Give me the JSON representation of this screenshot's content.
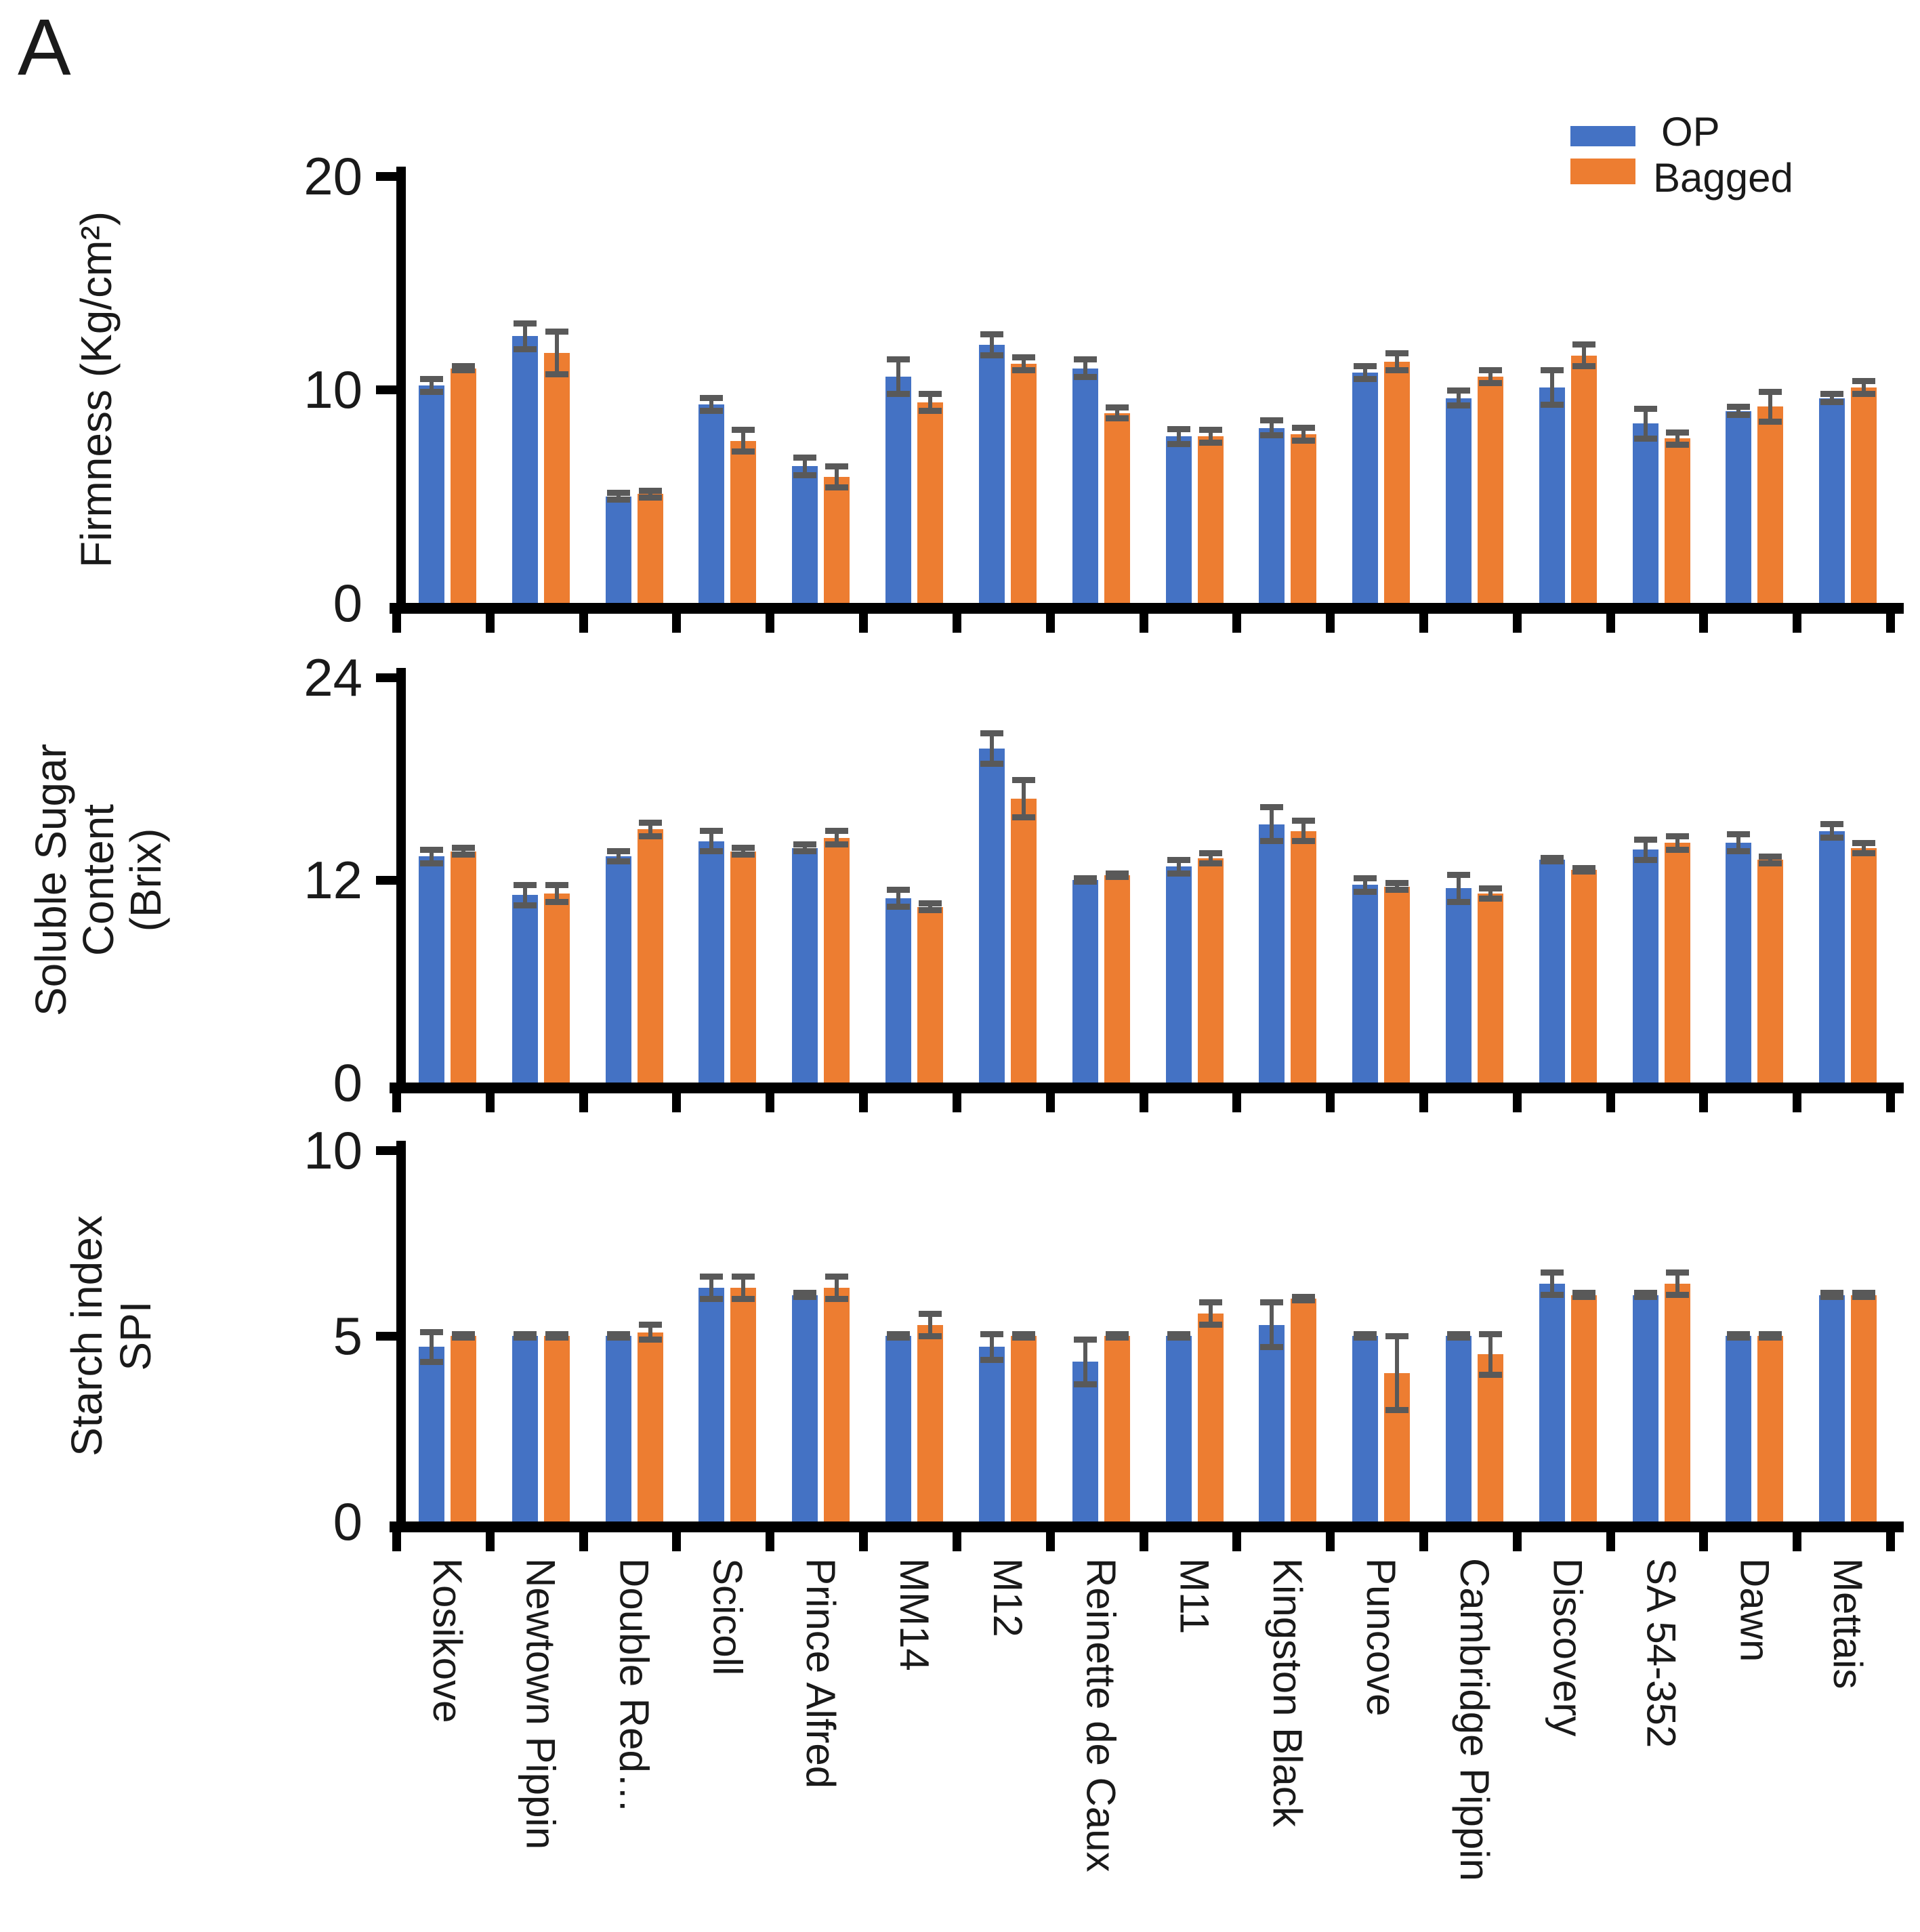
{
  "figure_label": "A",
  "legend": {
    "items": [
      {
        "label": "OP",
        "color": "#4472C4"
      },
      {
        "label": "Bagged",
        "color": "#ED7D31"
      }
    ]
  },
  "colors": {
    "op": "#4472C4",
    "bagged": "#ED7D31",
    "error_bar": "#595959",
    "axis": "#000000"
  },
  "chart_data": [
    {
      "type": "bar",
      "ylabel": "Firmness (Kg/cm²)",
      "ylabel_lines": [
        "Firmness (Kg/cm²)"
      ],
      "ylim": [
        0,
        20
      ],
      "yticks": [
        0,
        10,
        20
      ],
      "grid": false,
      "legend_position": "top-right",
      "categories": [
        "Kosikove",
        "Newtown Pippin",
        "Double Red…",
        "Scicoll",
        "Prince Alfred",
        "MM14",
        "M12",
        "Reinette de Caux",
        "M11",
        "Kingston Black",
        "Puncove",
        "Cambridge Pippin",
        "Discovery",
        "SA 54-352",
        "Dawn",
        "Mettais"
      ],
      "series": [
        {
          "name": "OP",
          "color": "#4472C4",
          "values": [
            10.2,
            12.5,
            5.0,
            9.3,
            6.4,
            10.6,
            12.1,
            11.0,
            7.8,
            8.2,
            10.8,
            9.6,
            10.1,
            8.4,
            9.0,
            9.6
          ],
          "errors": [
            0.3,
            0.6,
            0.15,
            0.3,
            0.4,
            0.8,
            0.5,
            0.4,
            0.35,
            0.35,
            0.3,
            0.35,
            0.8,
            0.7,
            0.2,
            0.2
          ]
        },
        {
          "name": "Bagged",
          "color": "#ED7D31",
          "values": [
            11.0,
            11.7,
            5.1,
            7.6,
            5.9,
            9.4,
            11.2,
            8.9,
            7.8,
            7.9,
            11.3,
            10.6,
            11.6,
            7.7,
            9.2,
            10.1
          ],
          "errors": [
            0.1,
            1.0,
            0.15,
            0.5,
            0.5,
            0.4,
            0.3,
            0.25,
            0.3,
            0.3,
            0.4,
            0.3,
            0.5,
            0.3,
            0.7,
            0.3
          ]
        }
      ]
    },
    {
      "type": "bar",
      "ylabel": "Soluble Sugar Content (Brix)",
      "ylabel_lines": [
        "Soluble Sugar",
        "Content",
        "(Brix)"
      ],
      "ylim": [
        0,
        24
      ],
      "yticks": [
        0,
        12,
        24
      ],
      "grid": false,
      "categories": [
        "Kosikove",
        "Newtown Pippin",
        "Double Red…",
        "Scicoll",
        "Prince Alfred",
        "MM14",
        "M12",
        "Reinette de Caux",
        "M11",
        "Kingston Black",
        "Puncove",
        "Cambridge Pippin",
        "Discovery",
        "SA 54-352",
        "Dawn",
        "Mettais"
      ],
      "series": [
        {
          "name": "OP",
          "color": "#4472C4",
          "values": [
            13.4,
            11.1,
            13.4,
            14.3,
            13.9,
            10.9,
            19.8,
            12.0,
            12.8,
            15.3,
            11.7,
            11.5,
            13.2,
            13.8,
            14.2,
            14.9
          ],
          "errors": [
            0.4,
            0.6,
            0.3,
            0.6,
            0.2,
            0.5,
            0.9,
            0.1,
            0.4,
            1.0,
            0.4,
            0.8,
            0.1,
            0.6,
            0.5,
            0.4
          ]
        },
        {
          "name": "Bagged",
          "color": "#ED7D31",
          "values": [
            13.7,
            11.2,
            15.0,
            13.7,
            14.5,
            10.4,
            16.8,
            12.3,
            13.3,
            14.9,
            11.6,
            11.2,
            12.6,
            14.2,
            13.2,
            13.9
          ],
          "errors": [
            0.2,
            0.5,
            0.4,
            0.2,
            0.4,
            0.2,
            1.1,
            0.1,
            0.3,
            0.6,
            0.2,
            0.3,
            0.1,
            0.4,
            0.2,
            0.3
          ]
        }
      ]
    },
    {
      "type": "bar",
      "ylabel": "Starch index SPI",
      "ylabel_lines": [
        "Starch index",
        "SPI"
      ],
      "ylim": [
        0,
        10
      ],
      "yticks": [
        0,
        5,
        10
      ],
      "grid": false,
      "categories": [
        "Kosikove",
        "Newtown Pippin",
        "Double Red…",
        "Scicoll",
        "Prince Alfred",
        "MM14",
        "M12",
        "Reinette de Caux",
        "M11",
        "Kingston Black",
        "Puncove",
        "Cambridge Pippin",
        "Discovery",
        "SA 54-352",
        "Dawn",
        "Mettais"
      ],
      "series": [
        {
          "name": "OP",
          "color": "#4472C4",
          "values": [
            4.7,
            5.0,
            5.0,
            6.3,
            6.1,
            5.0,
            4.7,
            4.3,
            5.0,
            5.3,
            5.0,
            5.0,
            6.4,
            6.1,
            5.0,
            6.1
          ],
          "errors": [
            0.4,
            0.05,
            0.05,
            0.3,
            0.05,
            0.05,
            0.35,
            0.6,
            0.05,
            0.6,
            0.05,
            0.05,
            0.3,
            0.05,
            0.05,
            0.05
          ]
        },
        {
          "name": "Bagged",
          "color": "#ED7D31",
          "values": [
            5.0,
            5.0,
            5.1,
            6.3,
            6.3,
            5.3,
            5.0,
            5.0,
            5.6,
            6.0,
            4.0,
            4.5,
            6.1,
            6.4,
            5.0,
            6.1
          ],
          "errors": [
            0.05,
            0.05,
            0.2,
            0.3,
            0.3,
            0.3,
            0.05,
            0.05,
            0.3,
            0.05,
            1.0,
            0.55,
            0.05,
            0.3,
            0.05,
            0.05
          ]
        }
      ]
    }
  ]
}
